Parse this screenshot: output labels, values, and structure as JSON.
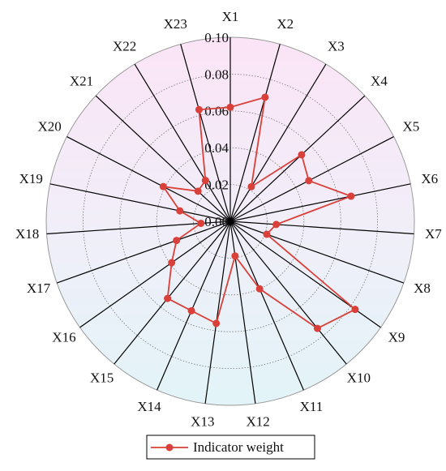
{
  "chart_data": {
    "type": "radar",
    "categories": [
      "X1",
      "X2",
      "X3",
      "X4",
      "X5",
      "X6",
      "X7",
      "X8",
      "X9",
      "X10",
      "X11",
      "X12",
      "X13",
      "X14",
      "X15",
      "X16",
      "X17",
      "X18",
      "X19",
      "X20",
      "X21",
      "X22",
      "X23"
    ],
    "series": [
      {
        "name": "Indicator weight",
        "color": "#d9403a",
        "values": [
          0.062,
          0.07,
          0.022,
          0.053,
          0.048,
          0.067,
          0.025,
          0.021,
          0.083,
          0.075,
          0.04,
          0.019,
          0.056,
          0.053,
          0.054,
          0.039,
          0.031,
          0.016,
          0.028,
          0.041,
          0.024,
          0.026,
          0.063
        ]
      }
    ],
    "ylim": [
      0,
      0.1
    ],
    "yticks": [
      {
        "value": 0,
        "label": "0.00"
      },
      0.02,
      0.04,
      0.06,
      0.08,
      {
        "value": 0.1,
        "label": "0.10"
      }
    ],
    "grid": true,
    "legend": "bottom"
  }
}
